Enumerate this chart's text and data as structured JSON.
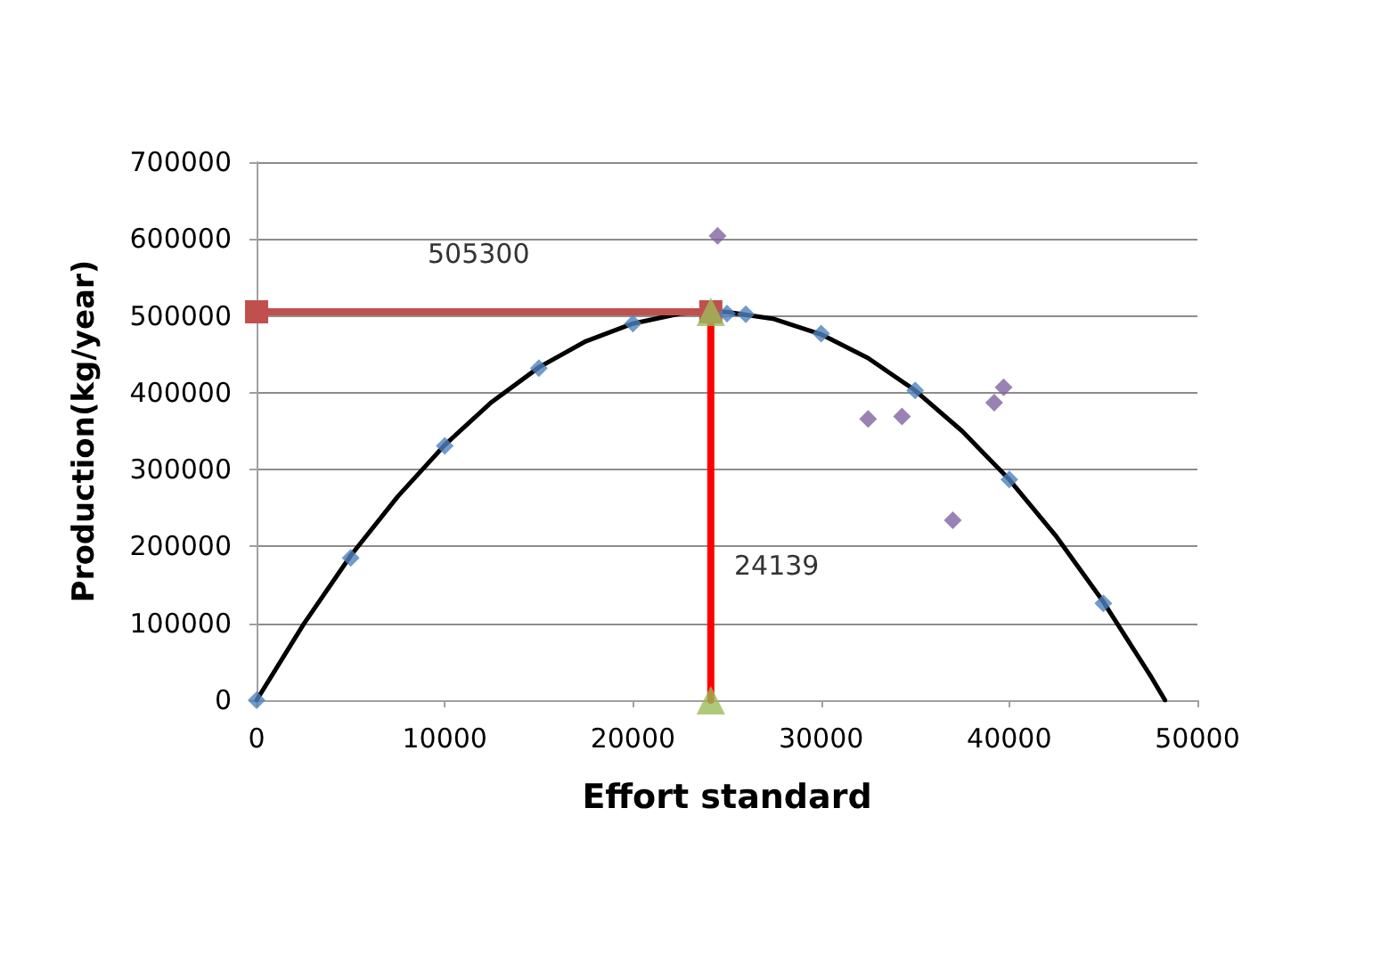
{
  "chart_data": {
    "type": "scatter",
    "xlabel": "Effort standard",
    "ylabel": "Production(kg/year)",
    "xlim": [
      0,
      50000
    ],
    "xticks": [
      0,
      10000,
      20000,
      30000,
      40000,
      50000
    ],
    "ylim": [
      0,
      700000
    ],
    "yticks": [
      0,
      100000,
      200000,
      300000,
      400000,
      500000,
      600000,
      700000
    ],
    "grid": "y",
    "series": [
      {
        "type": "line",
        "color": "#000000",
        "marker": "none",
        "line_style": "solid",
        "x": [
          0,
          2500,
          5000,
          7500,
          10000,
          12500,
          15000,
          17500,
          20000,
          22500,
          24139,
          25000,
          27500,
          30000,
          32500,
          35000,
          37500,
          40000,
          42500,
          45000,
          47500,
          48278
        ],
        "values": [
          0,
          99000,
          188000,
          265000,
          332000,
          388000,
          433000,
          467000,
          490000,
          503000,
          505300,
          505000,
          496000,
          476000,
          445000,
          403000,
          350000,
          287000,
          213000,
          128000,
          32000,
          0
        ]
      },
      {
        "color": "#4f81bd",
        "marker": "diamond",
        "x": [
          0,
          5000,
          10000,
          15000,
          20000,
          25000,
          26000,
          30000,
          35000,
          40000,
          45000
        ],
        "values": [
          0,
          185000,
          331000,
          432000,
          490000,
          503000,
          502000,
          477000,
          403000,
          287000,
          126000
        ]
      },
      {
        "color": "#8064a2",
        "marker": "diamond",
        "x": [
          24500,
          32500,
          34300,
          37000,
          39200,
          39700
        ],
        "values": [
          604000,
          366000,
          369000,
          234000,
          387000,
          407000
        ]
      },
      {
        "type": "line",
        "color": "#c0504d",
        "marker": "square",
        "line_style": "solid",
        "x": [
          0,
          24139
        ],
        "values": [
          505300,
          505300
        ]
      },
      {
        "type": "line",
        "color": "#ff0000",
        "marker": "none",
        "line_style": "solid",
        "x": [
          24139,
          24139
        ],
        "values": [
          0,
          505300
        ]
      },
      {
        "color": "#9bbb59",
        "marker": "triangle",
        "x": [
          24139,
          24139
        ],
        "values": [
          0,
          505300
        ]
      }
    ],
    "annotations": [
      "505300",
      "24139"
    ]
  }
}
